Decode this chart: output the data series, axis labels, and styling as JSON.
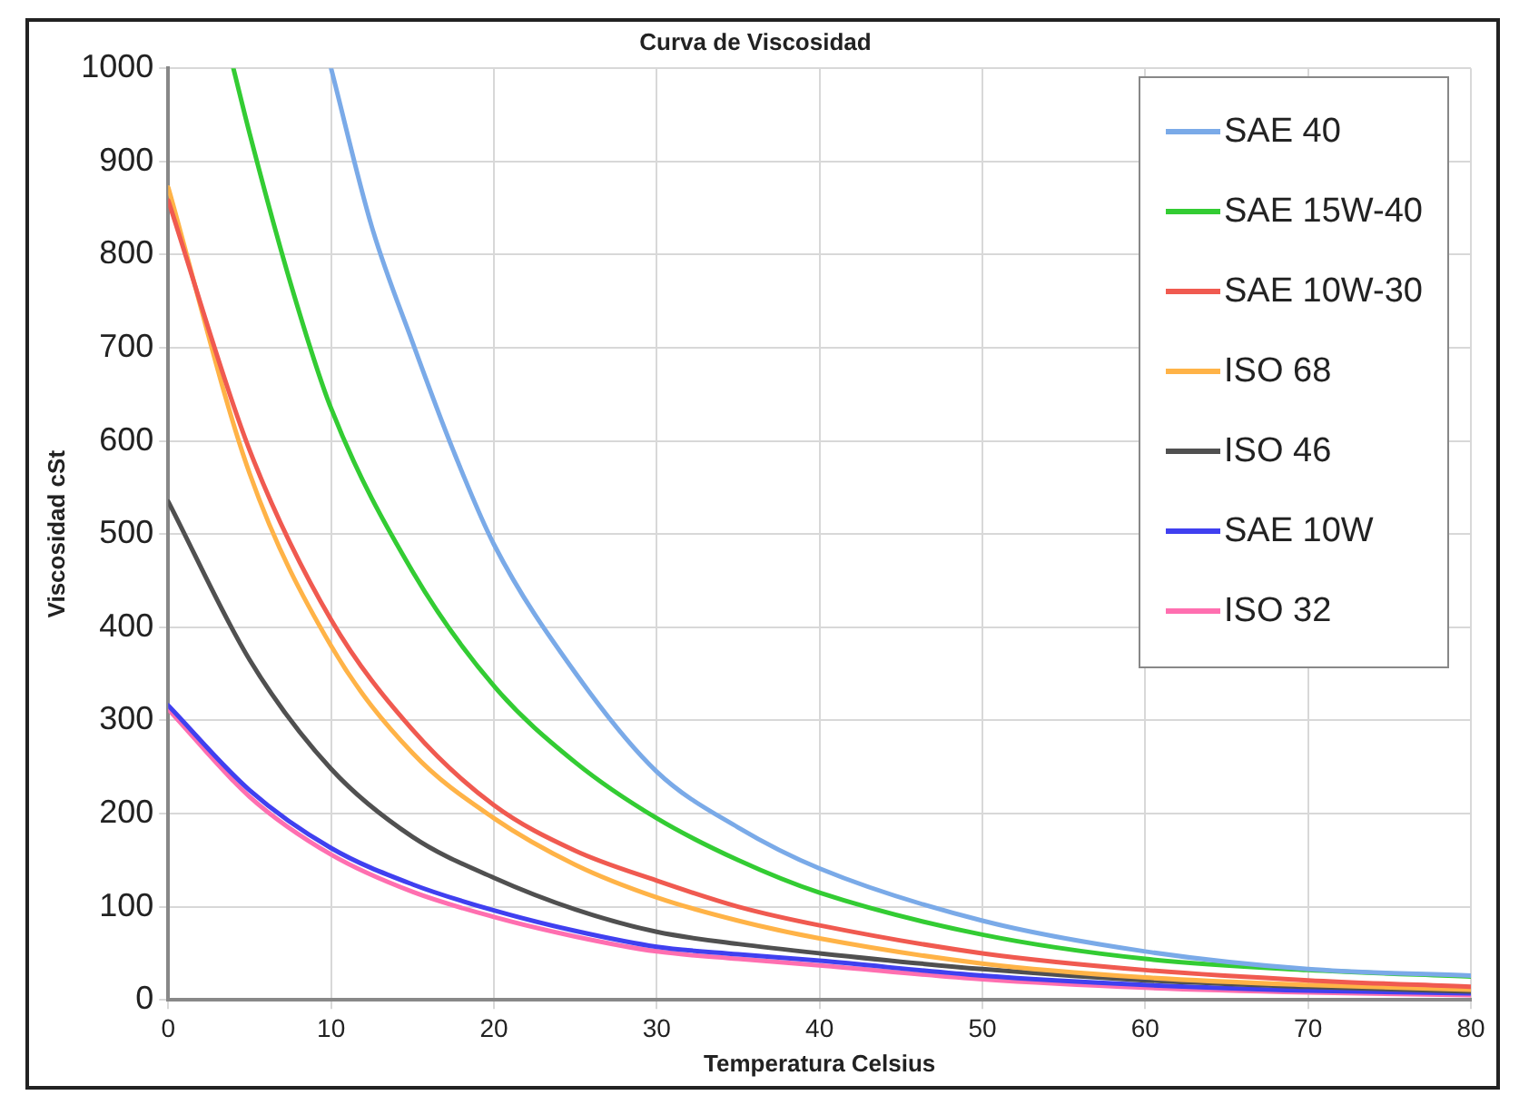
{
  "chart_data": {
    "type": "line",
    "title": "Curva de Viscosidad",
    "xlabel": "Temperatura Celsius",
    "ylabel": "Viscosidad cSt",
    "xlim": [
      0,
      80
    ],
    "xticks": [
      0,
      10,
      20,
      30,
      40,
      50,
      60,
      70,
      80
    ],
    "ylim": [
      0,
      1000
    ],
    "yticks": [
      0,
      100,
      200,
      300,
      400,
      500,
      600,
      700,
      800,
      900,
      1000
    ],
    "grid": true,
    "legend": "top right",
    "marker": "none",
    "line_style": "solid",
    "series": [
      {
        "name": "SAE 40",
        "color": "#7aaae8",
        "x": [
          10,
          12.5,
          15,
          17.5,
          20,
          25,
          30,
          35,
          40,
          50,
          60,
          70,
          80
        ],
        "values": [
          1000,
          830,
          706,
          590,
          489,
          351,
          245,
          185,
          141,
          85,
          52,
          33,
          26
        ]
      },
      {
        "name": "SAE 15W-40",
        "color": "#33cc33",
        "x": [
          4,
          5,
          7.5,
          10,
          15,
          20,
          25,
          30,
          35,
          40,
          50,
          60,
          70,
          80
        ],
        "values": [
          1000,
          930,
          770,
          635,
          460,
          337,
          255,
          195,
          150,
          115,
          70,
          44,
          32,
          25
        ]
      },
      {
        "name": "SAE 10W-30",
        "color": "#f05a50",
        "x": [
          0,
          5,
          10,
          15,
          20,
          25,
          30,
          35,
          40,
          50,
          60,
          70,
          80
        ],
        "values": [
          858,
          590,
          408,
          290,
          209,
          160,
          128,
          100,
          80,
          50,
          32,
          21,
          14
        ]
      },
      {
        "name": "ISO 68",
        "color": "#ffb347",
        "x": [
          0,
          5,
          10,
          15,
          20,
          25,
          30,
          35,
          40,
          50,
          60,
          70,
          80
        ],
        "values": [
          872,
          565,
          380,
          265,
          195,
          145,
          110,
          85,
          66,
          39,
          24,
          16,
          11
        ]
      },
      {
        "name": "ISO 46",
        "color": "#505050",
        "x": [
          0,
          5,
          10,
          15,
          20,
          25,
          30,
          35,
          40,
          50,
          60,
          70,
          80
        ],
        "values": [
          535,
          365,
          248,
          175,
          131,
          97,
          73,
          60,
          50,
          33,
          21,
          14,
          9
        ]
      },
      {
        "name": "SAE 10W",
        "color": "#4040f0",
        "x": [
          0,
          5,
          10,
          15,
          20,
          25,
          30,
          35,
          40,
          50,
          60,
          70,
          80
        ],
        "values": [
          316,
          225,
          163,
          124,
          96,
          74,
          57,
          49,
          42,
          26,
          16,
          10,
          7
        ]
      },
      {
        "name": "ISO 32",
        "color": "#ff6fb0",
        "x": [
          0,
          5,
          10,
          15,
          20,
          25,
          30,
          35,
          40,
          50,
          60,
          70,
          80
        ],
        "values": [
          312,
          218,
          156,
          116,
          89,
          68,
          52,
          44,
          37,
          22,
          13,
          8,
          5
        ]
      }
    ]
  }
}
